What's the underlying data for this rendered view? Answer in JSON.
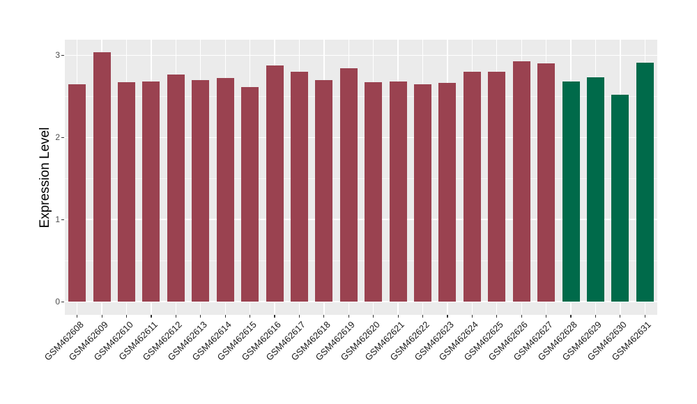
{
  "chart_data": {
    "type": "bar",
    "title": "",
    "xlabel": "",
    "ylabel": "Expression Level",
    "categories": [
      "GSM462608",
      "GSM462609",
      "GSM462610",
      "GSM462611",
      "GSM462612",
      "GSM462613",
      "GSM462614",
      "GSM462615",
      "GSM462616",
      "GSM462617",
      "GSM462618",
      "GSM462619",
      "GSM462620",
      "GSM462621",
      "GSM462622",
      "GSM462623",
      "GSM462624",
      "GSM462625",
      "GSM462626",
      "GSM462627",
      "GSM462628",
      "GSM462629",
      "GSM462630",
      "GSM462631"
    ],
    "values": [
      2.65,
      3.04,
      2.67,
      2.68,
      2.77,
      2.7,
      2.72,
      2.61,
      2.88,
      2.8,
      2.7,
      2.84,
      2.67,
      2.68,
      2.65,
      2.66,
      2.8,
      2.8,
      2.93,
      2.9,
      2.68,
      2.73,
      2.52,
      2.91
    ],
    "color_keys": [
      "maroon",
      "maroon",
      "maroon",
      "maroon",
      "maroon",
      "maroon",
      "maroon",
      "maroon",
      "maroon",
      "maroon",
      "maroon",
      "maroon",
      "maroon",
      "maroon",
      "maroon",
      "maroon",
      "maroon",
      "maroon",
      "maroon",
      "maroon",
      "green",
      "green",
      "green",
      "green"
    ],
    "palette": {
      "maroon": "#9A4250",
      "green": "#006A4A"
    },
    "yticks": [
      0,
      1,
      2,
      3
    ],
    "yticks_minor": [
      0.5,
      1.5,
      2.5
    ],
    "ylim": [
      -0.16,
      3.19
    ],
    "grid": true,
    "legend": "none",
    "panel_bg": "#EBEBEB",
    "grid_major_color": "#FFFFFF",
    "grid_minor_color": "rgba(255,255,255,0.55)"
  }
}
